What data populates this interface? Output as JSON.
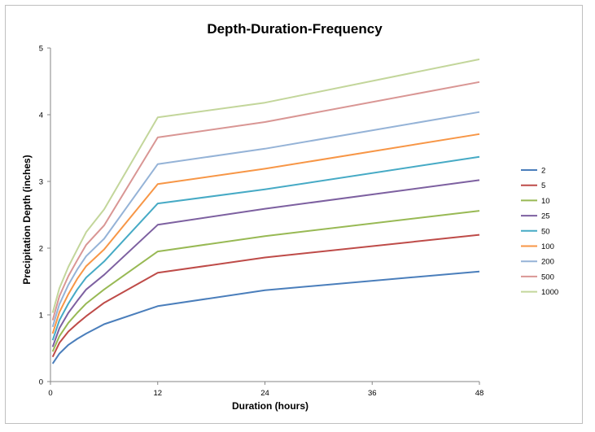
{
  "chart_data": {
    "type": "line",
    "title": "Depth-Duration-Frequency",
    "xlabel": "Duration (hours)",
    "ylabel": "Precipitation Depth (inches)",
    "xlim": [
      0,
      48
    ],
    "ylim": [
      0,
      5
    ],
    "xticks": [
      0,
      12,
      24,
      36,
      48
    ],
    "yticks": [
      0,
      1,
      2,
      3,
      4,
      5
    ],
    "grid": false,
    "legend_position": "right",
    "x": [
      0.25,
      1,
      2,
      3,
      4,
      6,
      12,
      24,
      48
    ],
    "series": [
      {
        "name": "2",
        "color": "#4a7ebb",
        "values": [
          0.27,
          0.42,
          0.55,
          0.64,
          0.72,
          0.86,
          1.13,
          1.37,
          1.65
        ]
      },
      {
        "name": "5",
        "color": "#be4b48",
        "values": [
          0.37,
          0.58,
          0.75,
          0.87,
          0.98,
          1.18,
          1.63,
          1.86,
          2.2
        ]
      },
      {
        "name": "10",
        "color": "#98b954",
        "values": [
          0.45,
          0.68,
          0.88,
          1.03,
          1.17,
          1.38,
          1.95,
          2.18,
          2.56
        ]
      },
      {
        "name": "25",
        "color": "#7d60a0",
        "values": [
          0.52,
          0.8,
          1.03,
          1.21,
          1.38,
          1.6,
          2.35,
          2.59,
          3.02
        ]
      },
      {
        "name": "50",
        "color": "#46aac5",
        "values": [
          0.62,
          0.92,
          1.17,
          1.38,
          1.56,
          1.8,
          2.67,
          2.88,
          3.37
        ]
      },
      {
        "name": "100",
        "color": "#f79646",
        "values": [
          0.72,
          1.04,
          1.31,
          1.54,
          1.73,
          1.98,
          2.96,
          3.19,
          3.71
        ]
      },
      {
        "name": "200",
        "color": "#95b3d7",
        "values": [
          0.82,
          1.16,
          1.45,
          1.68,
          1.88,
          2.14,
          3.26,
          3.49,
          4.04
        ]
      },
      {
        "name": "500",
        "color": "#d99694",
        "values": [
          0.92,
          1.28,
          1.58,
          1.82,
          2.05,
          2.34,
          3.66,
          3.89,
          4.49
        ]
      },
      {
        "name": "1000",
        "color": "#c3d69b",
        "values": [
          1.03,
          1.4,
          1.72,
          1.98,
          2.24,
          2.58,
          3.96,
          4.18,
          4.83
        ]
      }
    ]
  }
}
